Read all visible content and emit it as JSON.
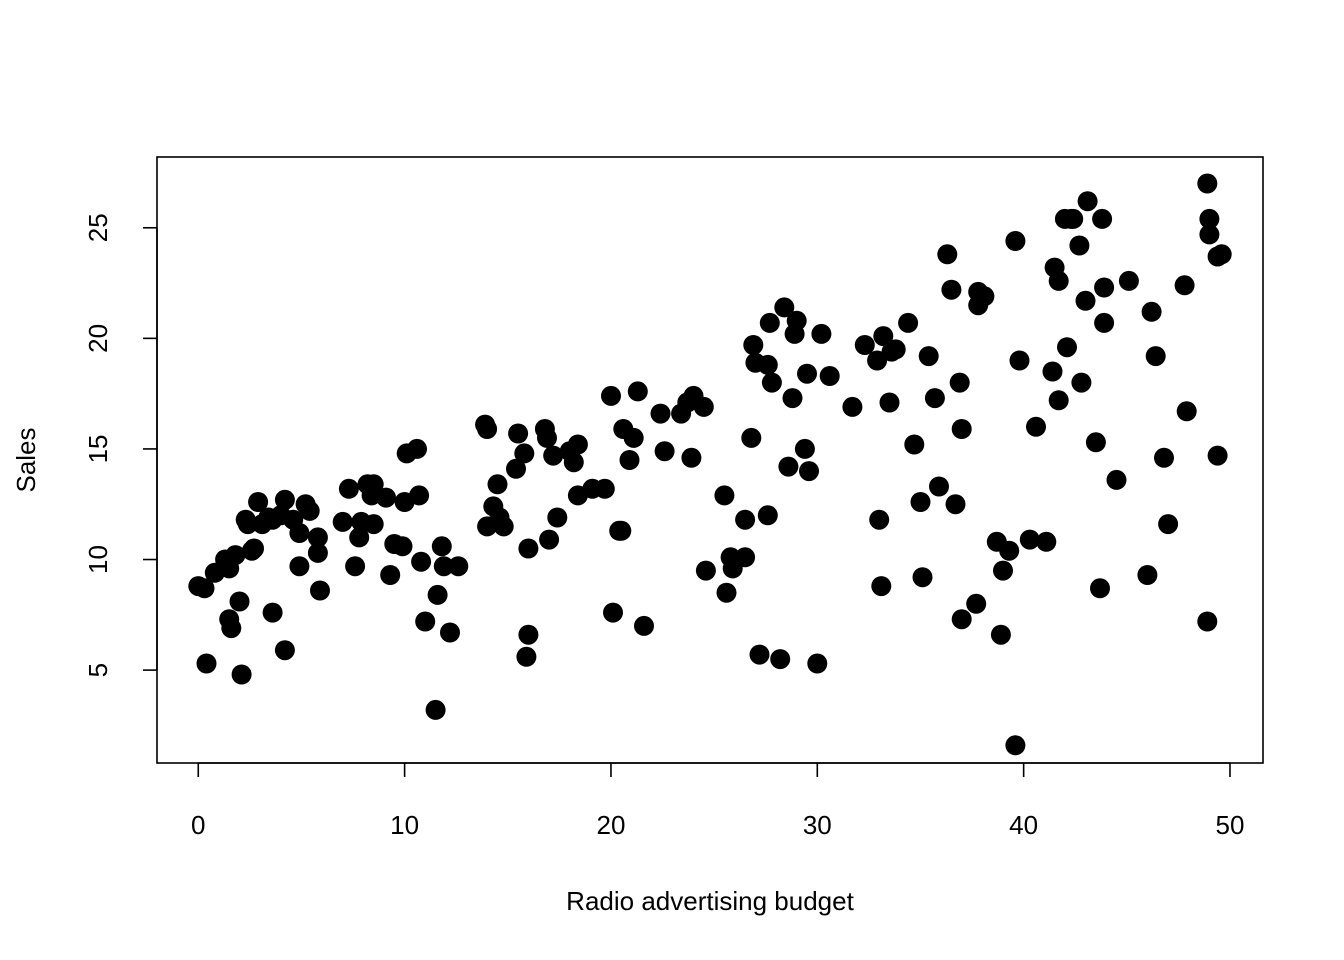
{
  "chart_data": {
    "type": "scatter",
    "title": "",
    "xlabel": "Radio advertising budget",
    "ylabel": "Sales",
    "xlim": [
      -2,
      51.6
    ],
    "ylim": [
      0.8,
      28.2
    ],
    "xticks": [
      0,
      10,
      20,
      30,
      40,
      50
    ],
    "xtick_labels": [
      "0",
      "10",
      "20",
      "30",
      "40",
      "50"
    ],
    "yticks": [
      5,
      10,
      15,
      20,
      25
    ],
    "ytick_labels": [
      "5",
      "10",
      "15",
      "20",
      "25"
    ],
    "grid": false,
    "legend": "none",
    "marker_color": "#000000",
    "points": [
      [
        0.0,
        8.8
      ],
      [
        0.3,
        8.7
      ],
      [
        0.4,
        5.3
      ],
      [
        0.8,
        9.4
      ],
      [
        1.3,
        10.0
      ],
      [
        1.5,
        7.3
      ],
      [
        1.6,
        6.9
      ],
      [
        1.5,
        9.6
      ],
      [
        1.8,
        10.2
      ],
      [
        2.0,
        8.1
      ],
      [
        2.1,
        4.8
      ],
      [
        2.3,
        11.8
      ],
      [
        2.4,
        11.6
      ],
      [
        2.6,
        10.4
      ],
      [
        2.7,
        10.5
      ],
      [
        2.9,
        12.6
      ],
      [
        3.1,
        11.6
      ],
      [
        3.4,
        11.9
      ],
      [
        3.6,
        11.8
      ],
      [
        3.6,
        7.6
      ],
      [
        4.0,
        12.0
      ],
      [
        4.2,
        12.7
      ],
      [
        4.2,
        5.9
      ],
      [
        4.6,
        11.8
      ],
      [
        4.9,
        11.2
      ],
      [
        4.9,
        9.7
      ],
      [
        5.2,
        12.5
      ],
      [
        5.4,
        12.2
      ],
      [
        5.8,
        10.3
      ],
      [
        5.8,
        11.0
      ],
      [
        5.9,
        8.6
      ],
      [
        7.0,
        11.7
      ],
      [
        7.3,
        13.2
      ],
      [
        7.6,
        9.7
      ],
      [
        7.8,
        11.0
      ],
      [
        7.9,
        11.7
      ],
      [
        8.2,
        13.4
      ],
      [
        8.4,
        12.9
      ],
      [
        8.5,
        13.4
      ],
      [
        8.5,
        11.6
      ],
      [
        9.1,
        12.8
      ],
      [
        9.3,
        9.3
      ],
      [
        9.5,
        10.7
      ],
      [
        9.9,
        10.6
      ],
      [
        10.0,
        12.6
      ],
      [
        10.1,
        14.8
      ],
      [
        10.6,
        15.0
      ],
      [
        10.7,
        12.9
      ],
      [
        10.8,
        9.9
      ],
      [
        11.0,
        7.2
      ],
      [
        11.5,
        3.2
      ],
      [
        11.6,
        8.4
      ],
      [
        11.8,
        10.6
      ],
      [
        11.9,
        9.7
      ],
      [
        12.2,
        6.7
      ],
      [
        12.6,
        9.7
      ],
      [
        13.9,
        16.1
      ],
      [
        14.0,
        15.9
      ],
      [
        14.0,
        11.5
      ],
      [
        14.3,
        12.4
      ],
      [
        14.5,
        13.4
      ],
      [
        14.6,
        11.9
      ],
      [
        14.8,
        11.5
      ],
      [
        15.4,
        14.1
      ],
      [
        15.5,
        15.7
      ],
      [
        15.8,
        14.8
      ],
      [
        16.0,
        10.5
      ],
      [
        16.0,
        6.6
      ],
      [
        15.9,
        5.6
      ],
      [
        16.8,
        15.9
      ],
      [
        16.9,
        15.5
      ],
      [
        17.2,
        14.7
      ],
      [
        17.0,
        10.9
      ],
      [
        17.4,
        11.9
      ],
      [
        18.0,
        14.9
      ],
      [
        18.2,
        14.4
      ],
      [
        18.4,
        15.2
      ],
      [
        18.4,
        12.9
      ],
      [
        19.1,
        13.2
      ],
      [
        19.7,
        13.2
      ],
      [
        20.0,
        17.4
      ],
      [
        20.1,
        7.6
      ],
      [
        20.4,
        11.3
      ],
      [
        20.5,
        11.3
      ],
      [
        20.6,
        15.9
      ],
      [
        20.9,
        14.5
      ],
      [
        21.1,
        15.5
      ],
      [
        21.3,
        17.6
      ],
      [
        21.6,
        7.0
      ],
      [
        22.4,
        16.6
      ],
      [
        22.6,
        14.9
      ],
      [
        23.4,
        16.6
      ],
      [
        23.7,
        17.1
      ],
      [
        24.0,
        17.4
      ],
      [
        23.9,
        14.6
      ],
      [
        24.6,
        9.5
      ],
      [
        24.5,
        16.9
      ],
      [
        25.5,
        12.9
      ],
      [
        25.6,
        8.5
      ],
      [
        25.8,
        10.1
      ],
      [
        25.9,
        9.6
      ],
      [
        26.5,
        10.1
      ],
      [
        26.5,
        11.8
      ],
      [
        26.8,
        15.5
      ],
      [
        26.9,
        19.7
      ],
      [
        27.0,
        18.9
      ],
      [
        27.2,
        5.7
      ],
      [
        27.6,
        18.8
      ],
      [
        27.6,
        12.0
      ],
      [
        27.7,
        20.7
      ],
      [
        27.8,
        18.0
      ],
      [
        28.2,
        5.5
      ],
      [
        28.4,
        21.4
      ],
      [
        28.6,
        14.2
      ],
      [
        28.8,
        17.3
      ],
      [
        28.9,
        20.2
      ],
      [
        29.0,
        20.8
      ],
      [
        29.5,
        18.4
      ],
      [
        29.4,
        15.0
      ],
      [
        29.6,
        14.0
      ],
      [
        30.0,
        5.3
      ],
      [
        30.2,
        20.2
      ],
      [
        30.6,
        18.3
      ],
      [
        31.7,
        16.9
      ],
      [
        32.3,
        19.7
      ],
      [
        32.9,
        19.0
      ],
      [
        33.0,
        11.8
      ],
      [
        33.1,
        8.8
      ],
      [
        33.2,
        20.1
      ],
      [
        33.5,
        17.1
      ],
      [
        33.6,
        19.4
      ],
      [
        33.8,
        19.5
      ],
      [
        34.4,
        20.7
      ],
      [
        34.7,
        15.2
      ],
      [
        35.0,
        12.6
      ],
      [
        35.1,
        9.2
      ],
      [
        35.4,
        19.2
      ],
      [
        35.7,
        17.3
      ],
      [
        35.9,
        13.3
      ],
      [
        36.3,
        23.8
      ],
      [
        36.5,
        22.2
      ],
      [
        36.7,
        12.5
      ],
      [
        36.9,
        18.0
      ],
      [
        37.0,
        7.3
      ],
      [
        37.0,
        15.9
      ],
      [
        37.7,
        8.0
      ],
      [
        37.8,
        22.1
      ],
      [
        37.8,
        21.5
      ],
      [
        38.1,
        21.9
      ],
      [
        38.7,
        10.8
      ],
      [
        38.9,
        6.6
      ],
      [
        39.0,
        9.5
      ],
      [
        39.3,
        10.4
      ],
      [
        39.6,
        24.4
      ],
      [
        39.6,
        1.6
      ],
      [
        39.8,
        19.0
      ],
      [
        40.3,
        10.9
      ],
      [
        40.6,
        16.0
      ],
      [
        41.1,
        10.8
      ],
      [
        41.4,
        18.5
      ],
      [
        41.5,
        23.2
      ],
      [
        41.7,
        17.2
      ],
      [
        41.7,
        22.6
      ],
      [
        42.0,
        25.4
      ],
      [
        42.1,
        19.6
      ],
      [
        42.3,
        25.4
      ],
      [
        42.4,
        25.4
      ],
      [
        42.7,
        24.2
      ],
      [
        42.8,
        18.0
      ],
      [
        43.0,
        21.7
      ],
      [
        43.1,
        26.2
      ],
      [
        43.5,
        15.3
      ],
      [
        43.7,
        8.7
      ],
      [
        43.8,
        25.4
      ],
      [
        43.9,
        22.3
      ],
      [
        43.9,
        20.7
      ],
      [
        44.5,
        13.6
      ],
      [
        45.1,
        22.6
      ],
      [
        46.0,
        9.3
      ],
      [
        46.2,
        21.2
      ],
      [
        46.4,
        19.2
      ],
      [
        46.8,
        14.6
      ],
      [
        47.0,
        11.6
      ],
      [
        47.8,
        22.4
      ],
      [
        47.9,
        16.7
      ],
      [
        48.9,
        27.0
      ],
      [
        49.0,
        25.4
      ],
      [
        49.0,
        24.7
      ],
      [
        48.9,
        7.2
      ],
      [
        49.4,
        23.7
      ],
      [
        49.6,
        23.8
      ],
      [
        49.4,
        14.7
      ]
    ]
  }
}
